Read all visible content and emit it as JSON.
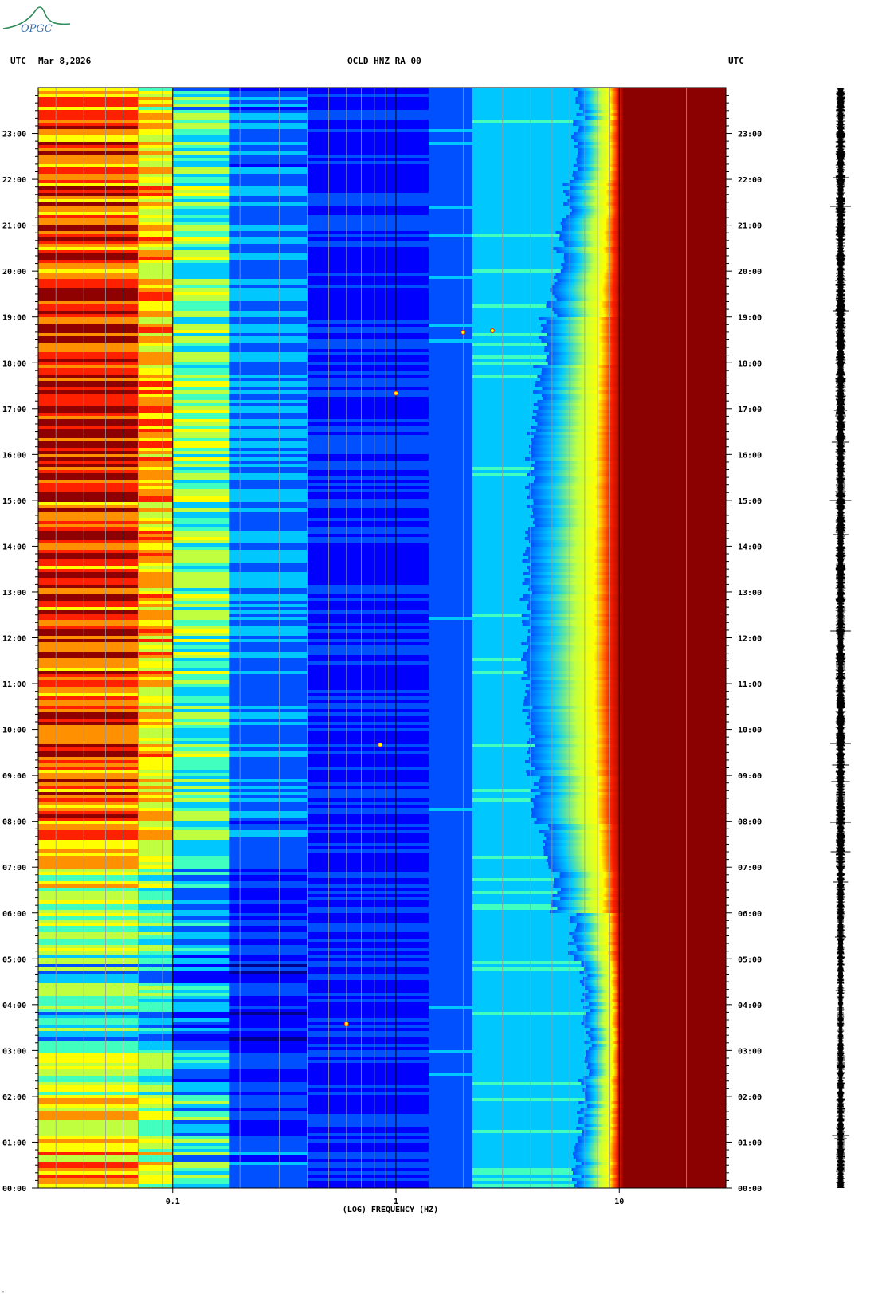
{
  "header": {
    "logo_text": "OPGC",
    "left_tz": "UTC",
    "date": "Mar 8,2026",
    "station": "OCLD HNZ RA 00",
    "right_tz": "UTC"
  },
  "footer": {
    "corner_mark": "\""
  },
  "colors": {
    "scale": [
      "#00008f",
      "#0000ff",
      "#0050ff",
      "#00c8ff",
      "#40ffbf",
      "#c0ff40",
      "#ffff00",
      "#ff9000",
      "#ff2000",
      "#8f0000"
    ],
    "saturated": "#8b0000",
    "logo": "#2e8b57"
  },
  "chart_data": {
    "type": "heatmap",
    "title": "OCLD HNZ RA 00",
    "xlabel": "(LOG) FREQUENCY (HZ)",
    "ylabel": "",
    "x_scale": "log",
    "xlim": [
      0.025,
      30
    ],
    "ylim": [
      "00:00",
      "24:00"
    ],
    "x_ticks": [
      {
        "value": 0.1,
        "label": "0.1"
      },
      {
        "value": 1,
        "label": "1"
      },
      {
        "value": 10,
        "label": "10"
      }
    ],
    "y_ticks": [
      "00:00",
      "01:00",
      "02:00",
      "03:00",
      "04:00",
      "05:00",
      "06:00",
      "07:00",
      "08:00",
      "09:00",
      "10:00",
      "11:00",
      "12:00",
      "13:00",
      "14:00",
      "15:00",
      "16:00",
      "17:00",
      "18:00",
      "19:00",
      "20:00",
      "21:00",
      "22:00",
      "23:00"
    ],
    "grid": true,
    "hourly_low_band_intensity": [
      0.72,
      0.62,
      0.55,
      0.4,
      0.42,
      0.5,
      0.62,
      0.78,
      0.82,
      0.82,
      0.84,
      0.86,
      0.85,
      0.86,
      0.88,
      0.9,
      0.92,
      0.92,
      0.9,
      0.88,
      0.86,
      0.84,
      0.82,
      0.8
    ],
    "hourly_high_band_onset_hz": [
      6.5,
      6.8,
      7.0,
      7.2,
      7.0,
      6.2,
      5.2,
      4.6,
      4.2,
      4.0,
      3.9,
      3.8,
      3.8,
      3.9,
      4.0,
      4.0,
      4.1,
      4.3,
      4.6,
      5.0,
      5.4,
      5.8,
      6.2,
      6.6
    ],
    "saturation_start_hz": 10.5,
    "events": [
      {
        "time": "18:40",
        "frequency_hz": 2.0
      },
      {
        "time": "18:42",
        "frequency_hz": 2.7
      },
      {
        "time": "17:20",
        "frequency_hz": 1.0
      },
      {
        "time": "09:40",
        "frequency_hz": 0.85
      },
      {
        "time": "03:35",
        "frequency_hz": 0.6
      }
    ]
  }
}
